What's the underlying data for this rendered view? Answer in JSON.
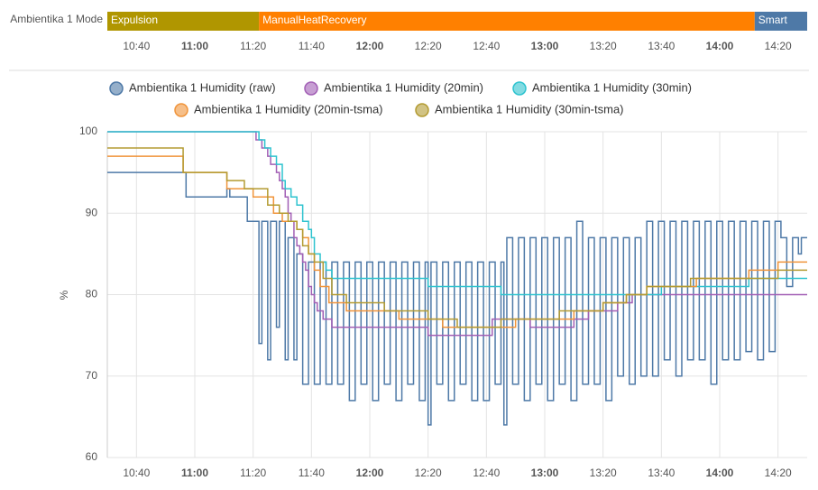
{
  "chart_data": [
    {
      "type": "timeline",
      "label": "Ambientika 1 Mode",
      "xlim": [
        630,
        870
      ],
      "xticks": [
        {
          "value": 640,
          "label": "10:40"
        },
        {
          "value": 660,
          "label": "11:00"
        },
        {
          "value": 680,
          "label": "11:20"
        },
        {
          "value": 700,
          "label": "11:40"
        },
        {
          "value": 720,
          "label": "12:00"
        },
        {
          "value": 740,
          "label": "12:20"
        },
        {
          "value": 760,
          "label": "12:40"
        },
        {
          "value": 780,
          "label": "13:00"
        },
        {
          "value": 800,
          "label": "13:20"
        },
        {
          "value": 820,
          "label": "13:40"
        },
        {
          "value": 840,
          "label": "14:00"
        },
        {
          "value": 860,
          "label": "14:20"
        }
      ],
      "segments": [
        {
          "name": "Expulsion",
          "start": 630,
          "end": 682,
          "color": "#b09600"
        },
        {
          "name": "ManualHeatRecovery",
          "start": 682,
          "end": 852,
          "color": "#ff8000"
        },
        {
          "name": "Smart",
          "start": 852,
          "end": 870,
          "color": "#4e79a7"
        }
      ]
    },
    {
      "type": "line",
      "step": true,
      "ylabel": "%",
      "grid": true,
      "xlim": [
        630,
        870
      ],
      "ylim": [
        60,
        100
      ],
      "yticks": [
        60,
        70,
        80,
        90,
        100
      ],
      "xticks": [
        {
          "value": 640,
          "label": "10:40"
        },
        {
          "value": 660,
          "label": "11:00"
        },
        {
          "value": 680,
          "label": "11:20"
        },
        {
          "value": 700,
          "label": "11:40"
        },
        {
          "value": 720,
          "label": "12:00"
        },
        {
          "value": 740,
          "label": "12:20"
        },
        {
          "value": 760,
          "label": "12:40"
        },
        {
          "value": 780,
          "label": "13:00"
        },
        {
          "value": 800,
          "label": "13:20"
        },
        {
          "value": 820,
          "label": "13:40"
        },
        {
          "value": 840,
          "label": "14:00"
        },
        {
          "value": 860,
          "label": "14:20"
        }
      ],
      "series": [
        {
          "name": "Ambientika 1 Humidity (raw)",
          "color": "#4e79a7",
          "x": [
            630,
            657,
            671,
            672,
            678,
            682,
            683,
            685,
            686,
            688,
            689,
            691,
            692,
            694,
            695,
            697,
            699,
            701,
            703,
            705,
            707,
            709,
            711,
            713,
            715,
            717,
            719,
            721,
            723,
            725,
            727,
            729,
            731,
            733,
            735,
            737,
            739,
            740,
            741,
            743,
            745,
            747,
            749,
            751,
            753,
            755,
            757,
            759,
            761,
            763,
            765,
            766,
            767,
            769,
            771,
            773,
            775,
            777,
            779,
            781,
            783,
            785,
            787,
            789,
            791,
            793,
            795,
            797,
            799,
            801,
            803,
            805,
            807,
            809,
            811,
            813,
            815,
            817,
            819,
            821,
            823,
            825,
            827,
            829,
            831,
            833,
            835,
            837,
            839,
            841,
            843,
            845,
            847,
            849,
            851,
            853,
            855,
            857,
            859,
            861,
            863,
            865,
            867,
            868
          ],
          "values": [
            95,
            92,
            93,
            92,
            89,
            74,
            89,
            72,
            89,
            76,
            89,
            72,
            87,
            72,
            85,
            69,
            84,
            69,
            84,
            69,
            84,
            69,
            84,
            67,
            84,
            69,
            84,
            67,
            84,
            69,
            84,
            67,
            84,
            69,
            84,
            67,
            84,
            64,
            84,
            69,
            84,
            67,
            84,
            69,
            84,
            67,
            84,
            67,
            84,
            69,
            84,
            64,
            87,
            69,
            87,
            67,
            87,
            69,
            87,
            67,
            87,
            69,
            87,
            67,
            89,
            69,
            87,
            69,
            87,
            67,
            87,
            70,
            87,
            69,
            87,
            70,
            89,
            70,
            89,
            72,
            89,
            70,
            89,
            72,
            89,
            72,
            89,
            69,
            89,
            72,
            89,
            72,
            89,
            73,
            89,
            72,
            89,
            73,
            89,
            87,
            81,
            87,
            85,
            87
          ]
        },
        {
          "name": "Ambientika 1 Humidity (20min)",
          "color": "#a25fb5",
          "x": [
            630,
            681,
            683,
            685,
            686,
            688,
            689,
            690,
            691,
            692,
            693,
            694,
            695,
            696,
            697,
            698,
            699,
            700,
            701,
            702,
            704,
            707,
            720,
            740,
            762,
            775,
            790,
            795,
            805,
            810
          ],
          "values": [
            100,
            99,
            98,
            97,
            96,
            95,
            94,
            93,
            92,
            90,
            89,
            87,
            86,
            85,
            84,
            83,
            81,
            80,
            79,
            78,
            77,
            76,
            76,
            75,
            77,
            76,
            77,
            78,
            79,
            80
          ]
        },
        {
          "name": "Ambientika 1 Humidity (30min)",
          "color": "#2ec3cf",
          "x": [
            630,
            682,
            684,
            686,
            688,
            690,
            691,
            693,
            695,
            697,
            699,
            700,
            701,
            703,
            705,
            707,
            710,
            740,
            765,
            820,
            850
          ],
          "values": [
            100,
            99,
            98,
            97,
            96,
            94,
            93,
            92,
            91,
            89,
            88,
            87,
            85,
            84,
            83,
            82,
            82,
            81,
            80,
            81,
            82
          ]
        },
        {
          "name": "Ambientika 1 Humidity (20min-tsma)",
          "color": "#f0943a",
          "x": [
            630,
            656,
            671,
            680,
            687,
            690,
            695,
            697,
            699,
            701,
            703,
            706,
            712,
            730,
            745,
            770,
            790,
            800,
            808,
            815,
            832,
            850,
            860
          ],
          "values": [
            97,
            95,
            93,
            92,
            90,
            89,
            88,
            87,
            85,
            83,
            81,
            79,
            78,
            77,
            76,
            77,
            78,
            79,
            80,
            81,
            82,
            83,
            84
          ]
        },
        {
          "name": "Ambientika 1 Humidity (30min-tsma)",
          "color": "#b39b32",
          "x": [
            630,
            656,
            671,
            677,
            685,
            689,
            692,
            695,
            697,
            699,
            701,
            704,
            707,
            712,
            725,
            740,
            750,
            765,
            785,
            800,
            808,
            815,
            830,
            860
          ],
          "values": [
            98,
            95,
            94,
            93,
            91,
            90,
            89,
            88,
            86,
            85,
            84,
            82,
            80,
            79,
            78,
            77,
            76,
            77,
            78,
            79,
            80,
            81,
            82,
            83
          ]
        }
      ]
    }
  ]
}
